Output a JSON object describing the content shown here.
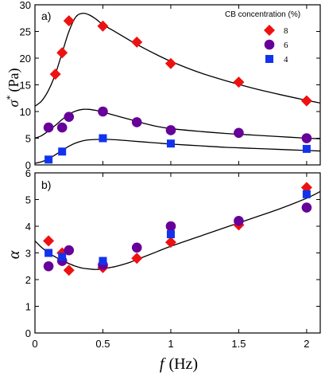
{
  "chart_data": [
    {
      "type": "scatter",
      "panel_label": "a)",
      "ylabel_symbol": "σ",
      "ylabel_sup": "*",
      "ylabel_unit": "(Pa)",
      "xlim": [
        0,
        2.1
      ],
      "ylim": [
        0,
        30
      ],
      "yticks": [
        0,
        5,
        10,
        15,
        20,
        25,
        30
      ],
      "yticklabels": [
        "0",
        "5",
        "10",
        "15",
        "20",
        "25",
        "30"
      ],
      "grid": false,
      "legend": {
        "title": "CB concentration (%)",
        "position": "top-right",
        "entries": [
          {
            "label": "8",
            "marker": "diamond",
            "color": "#ee1111"
          },
          {
            "label": "6",
            "marker": "circle",
            "color": "#660099"
          },
          {
            "label": "4",
            "marker": "square",
            "color": "#1133ee"
          }
        ]
      },
      "series": [
        {
          "name": "8",
          "marker": "diamond",
          "color": "#ee1111",
          "x": [
            0.15,
            0.2,
            0.25,
            0.5,
            0.75,
            1.0,
            1.5,
            2.0
          ],
          "y": [
            17,
            21,
            27,
            26,
            23,
            19,
            15.5,
            12
          ]
        },
        {
          "name": "6",
          "marker": "circle",
          "color": "#660099",
          "x": [
            0.1,
            0.2,
            0.25,
            0.5,
            0.75,
            1.0,
            1.5,
            2.0
          ],
          "y": [
            7,
            7,
            9,
            10,
            8,
            6.5,
            6,
            5
          ]
        },
        {
          "name": "4",
          "marker": "square",
          "color": "#1133ee",
          "x": [
            0.1,
            0.2,
            0.5,
            1.0,
            2.0
          ],
          "y": [
            1,
            2.5,
            5,
            4,
            3
          ]
        }
      ],
      "fit_curves": [
        {
          "for": "8",
          "x": [
            0,
            0.05,
            0.1,
            0.15,
            0.2,
            0.25,
            0.3,
            0.35,
            0.4,
            0.45,
            0.5,
            0.6,
            0.7,
            0.8,
            0.9,
            1.0,
            1.2,
            1.4,
            1.6,
            1.8,
            2.0,
            2.1
          ],
          "y": [
            11,
            12,
            14,
            17,
            21,
            25,
            27.7,
            28.4,
            28.1,
            27.3,
            26.3,
            24.8,
            23.3,
            21.9,
            20.6,
            19.4,
            17.4,
            15.8,
            14.4,
            13.2,
            12.1,
            11.6
          ]
        },
        {
          "for": "6",
          "x": [
            0,
            0.05,
            0.1,
            0.15,
            0.2,
            0.25,
            0.3,
            0.35,
            0.4,
            0.45,
            0.5,
            0.6,
            0.7,
            0.8,
            0.9,
            1.0,
            1.2,
            1.4,
            1.6,
            1.8,
            2.0,
            2.1
          ],
          "y": [
            5,
            5.5,
            6.4,
            7.4,
            8.5,
            9.5,
            10.1,
            10.4,
            10.4,
            10.2,
            9.9,
            9.2,
            8.5,
            7.8,
            7.2,
            6.8,
            6.3,
            5.9,
            5.6,
            5.3,
            5.0,
            4.9
          ]
        },
        {
          "for": "4",
          "x": [
            0,
            0.05,
            0.1,
            0.15,
            0.2,
            0.25,
            0.3,
            0.35,
            0.4,
            0.5,
            0.6,
            0.7,
            0.8,
            0.9,
            1.0,
            1.2,
            1.4,
            1.6,
            1.8,
            2.0,
            2.1
          ],
          "y": [
            0.3,
            0.6,
            1.1,
            1.9,
            2.7,
            3.5,
            4.1,
            4.5,
            4.7,
            4.8,
            4.7,
            4.5,
            4.3,
            4.1,
            3.9,
            3.6,
            3.3,
            3.1,
            2.9,
            2.7,
            2.6
          ]
        }
      ]
    },
    {
      "type": "scatter",
      "panel_label": "b)",
      "ylabel_symbol": "α",
      "xlabel_symbol": "f",
      "xlabel_unit": "(Hz)",
      "xlim": [
        0,
        2.1
      ],
      "ylim": [
        0,
        6
      ],
      "xticks": [
        0,
        0.5,
        1,
        1.5,
        2
      ],
      "xticklabels": [
        "0",
        "0.5",
        "1",
        "1.5",
        "2"
      ],
      "yticks": [
        0,
        1,
        2,
        3,
        4,
        5,
        6
      ],
      "yticklabels": [
        "0",
        "1",
        "2",
        "3",
        "4",
        "5",
        "6"
      ],
      "grid": false,
      "series": [
        {
          "name": "8",
          "marker": "diamond",
          "color": "#ee1111",
          "x": [
            0.1,
            0.2,
            0.25,
            0.5,
            0.75,
            1.0,
            1.5,
            2.0
          ],
          "y": [
            3.45,
            3.0,
            2.35,
            2.45,
            2.8,
            3.4,
            4.05,
            5.45
          ]
        },
        {
          "name": "6",
          "marker": "circle",
          "color": "#660099",
          "x": [
            0.1,
            0.2,
            0.25,
            0.5,
            0.75,
            1.0,
            1.5,
            2.0
          ],
          "y": [
            2.5,
            2.7,
            3.1,
            2.55,
            3.2,
            4.0,
            4.2,
            4.7
          ]
        },
        {
          "name": "4",
          "marker": "square",
          "color": "#1133ee",
          "x": [
            0.1,
            0.2,
            0.5,
            1.0,
            2.0
          ],
          "y": [
            3.0,
            2.85,
            2.7,
            3.7,
            5.2
          ]
        }
      ],
      "fit_curves": [
        {
          "for": "all",
          "x": [
            0,
            0.05,
            0.1,
            0.15,
            0.2,
            0.25,
            0.3,
            0.35,
            0.4,
            0.45,
            0.5,
            0.55,
            0.6,
            0.7,
            0.8,
            0.9,
            1.0,
            1.2,
            1.4,
            1.6,
            1.8,
            2.0,
            2.1
          ],
          "y": [
            3.45,
            3.2,
            3.0,
            2.85,
            2.72,
            2.6,
            2.5,
            2.43,
            2.4,
            2.38,
            2.4,
            2.45,
            2.5,
            2.65,
            2.85,
            3.05,
            3.25,
            3.6,
            3.95,
            4.3,
            4.65,
            5.05,
            5.3
          ]
        }
      ]
    }
  ]
}
